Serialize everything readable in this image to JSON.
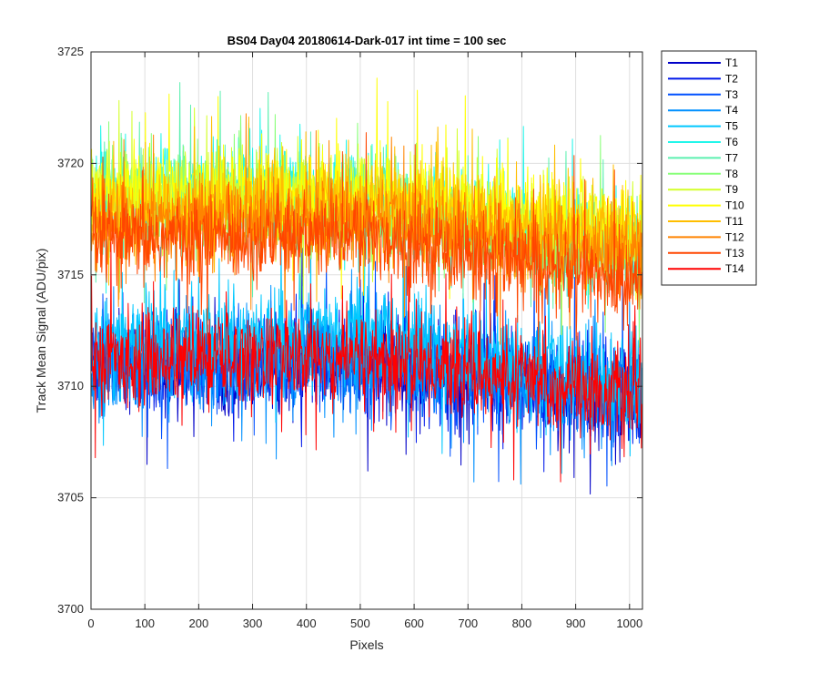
{
  "chart_data": {
    "type": "line",
    "title": "BS04 Day04 20180614-Dark-017 int time = 100 sec",
    "xlabel": "Pixels",
    "ylabel": "Track Mean Signal (ADU/pix)",
    "xlim": [
      0,
      1024
    ],
    "ylim": [
      3700,
      3725
    ],
    "xticks": [
      0,
      100,
      200,
      300,
      400,
      500,
      600,
      700,
      800,
      900,
      1000
    ],
    "yticks": [
      3700,
      3705,
      3710,
      3715,
      3720,
      3725
    ],
    "grid": true,
    "legend_position": "outside-top-right",
    "n_points": 1024,
    "series": [
      {
        "name": "T1",
        "color": "#0000c8",
        "mean_start": 3711.0,
        "mean_mid": 3711.0,
        "mean_end": 3709.5,
        "noise": 1.0
      },
      {
        "name": "T2",
        "color": "#0018ea",
        "mean_start": 3711.2,
        "mean_mid": 3711.0,
        "mean_end": 3709.5,
        "noise": 1.0
      },
      {
        "name": "T3",
        "color": "#0050ff",
        "mean_start": 3711.0,
        "mean_mid": 3711.2,
        "mean_end": 3709.5,
        "noise": 1.0
      },
      {
        "name": "T4",
        "color": "#0090ff",
        "mean_start": 3710.8,
        "mean_mid": 3711.2,
        "mean_end": 3709.3,
        "noise": 1.1
      },
      {
        "name": "T5",
        "color": "#00c8ff",
        "mean_start": 3712.0,
        "mean_mid": 3712.3,
        "mean_end": 3710.0,
        "noise": 1.1
      },
      {
        "name": "T6",
        "color": "#22f6ea",
        "mean_start": 3719.0,
        "mean_mid": 3718.5,
        "mean_end": 3716.0,
        "noise": 1.0
      },
      {
        "name": "T7",
        "color": "#5cf0b0",
        "mean_start": 3718.5,
        "mean_mid": 3718.0,
        "mean_end": 3715.8,
        "noise": 1.0
      },
      {
        "name": "T8",
        "color": "#88ff78",
        "mean_start": 3718.6,
        "mean_mid": 3718.0,
        "mean_end": 3716.0,
        "noise": 1.0
      },
      {
        "name": "T9",
        "color": "#d4ff2c",
        "mean_start": 3718.8,
        "mean_mid": 3718.4,
        "mean_end": 3716.5,
        "noise": 1.0
      },
      {
        "name": "T10",
        "color": "#ffff00",
        "mean_start": 3718.5,
        "mean_mid": 3718.6,
        "mean_end": 3717.0,
        "noise": 1.0
      },
      {
        "name": "T11",
        "color": "#ffbe00",
        "mean_start": 3717.8,
        "mean_mid": 3718.2,
        "mean_end": 3716.5,
        "noise": 1.0
      },
      {
        "name": "T12",
        "color": "#ff8400",
        "mean_start": 3717.0,
        "mean_mid": 3717.5,
        "mean_end": 3715.8,
        "noise": 1.0
      },
      {
        "name": "T13",
        "color": "#ff4600",
        "mean_start": 3716.5,
        "mean_mid": 3716.8,
        "mean_end": 3714.5,
        "noise": 1.0
      },
      {
        "name": "T14",
        "color": "#ff0000",
        "mean_start": 3711.2,
        "mean_mid": 3711.3,
        "mean_end": 3709.5,
        "noise": 1.05
      }
    ]
  }
}
